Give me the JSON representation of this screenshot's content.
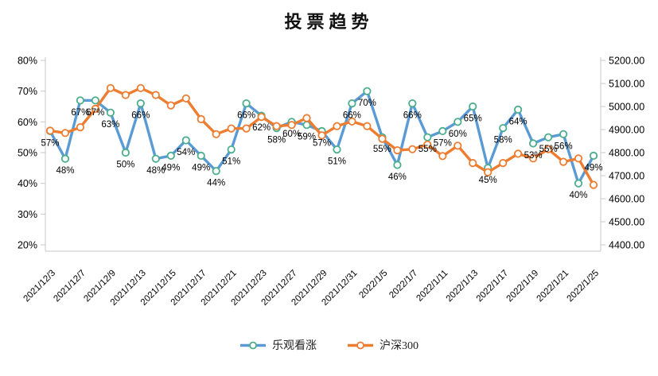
{
  "title": "投票趋势",
  "legend": [
    {
      "label": "乐观看涨"
    },
    {
      "label": "沪深300"
    }
  ],
  "chart_data": {
    "type": "line",
    "title": "投票趋势",
    "point_count": 37,
    "x_tick_labels": [
      "2021/12/3",
      "2021/12/7",
      "2021/12/9",
      "2021/12/13",
      "2021/12/15",
      "2021/12/17",
      "2021/12/21",
      "2021/12/23",
      "2021/12/27",
      "2021/12/29",
      "2021/12/31",
      "2022/1/5",
      "2022/1/7",
      "2022/1/11",
      "2022/1/13",
      "2022/1/17",
      "2022/1/19",
      "2022/1/21",
      "2022/1/25"
    ],
    "x_label_every_n_points": 2,
    "series": [
      {
        "name": "乐观看涨",
        "yaxis": "left",
        "line_color": "#5B9BD5",
        "marker_stroke": "#4BAE8C",
        "marker_fill": "#ffffff",
        "values": [
          57,
          48,
          67,
          67,
          63,
          50,
          66,
          48,
          49,
          54,
          49,
          44,
          51,
          66,
          62,
          58,
          60,
          59,
          57,
          51,
          66,
          70,
          55,
          46,
          66,
          55,
          57,
          60,
          65,
          45,
          58,
          64,
          53,
          55,
          56,
          40,
          49
        ],
        "data_label_texts": [
          "57%",
          "48%",
          "67%",
          "67%",
          "63%",
          "50%",
          "66%",
          "48%",
          "49%",
          "54%",
          "49%",
          "44%",
          "51%",
          "66%",
          "62%",
          "58%",
          "60%",
          "59%",
          "57%",
          "51%",
          "66%",
          "70%",
          "55%",
          "46%",
          "66%",
          "55%",
          "57%",
          "60%",
          "65%",
          "45%",
          "58%",
          "64%",
          "53%",
          "55%",
          "56%",
          "40%",
          "49%"
        ]
      },
      {
        "name": "沪深300",
        "yaxis": "right",
        "line_color": "#ED7D31",
        "marker_stroke": "#ED7D31",
        "marker_fill": "#ffffff",
        "values": [
          4895,
          4885,
          4910,
          4990,
          5080,
          5050,
          5080,
          5050,
          5005,
          5035,
          4945,
          4880,
          4905,
          4905,
          4955,
          4915,
          4920,
          4950,
          4875,
          4915,
          4935,
          4915,
          4860,
          4810,
          4815,
          4835,
          4785,
          4830,
          4755,
          4715,
          4755,
          4795,
          4775,
          4815,
          4760,
          4775,
          4660
        ],
        "data_label_texts": []
      }
    ],
    "left_axis": {
      "min": 20,
      "max": 80,
      "step": 10,
      "suffix": "%",
      "tick_labels": [
        "80%",
        "70%",
        "60%",
        "50%",
        "40%",
        "30%",
        "20%"
      ]
    },
    "right_axis": {
      "min": 4400,
      "max": 5200,
      "step": 100,
      "tick_labels": [
        "5200.00",
        "5100.00",
        "5000.00",
        "4900.00",
        "4800.00",
        "4700.00",
        "4600.00",
        "4500.00",
        "4400.00"
      ]
    },
    "grid": false,
    "legend_position": "bottom",
    "axis_line_color": "#c9c9c9",
    "text_color": "#000000"
  }
}
